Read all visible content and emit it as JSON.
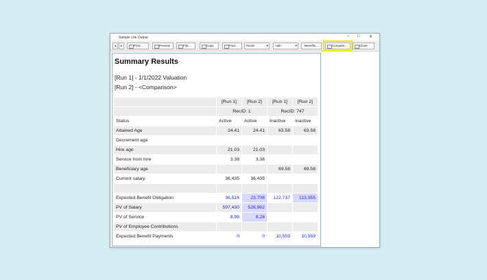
{
  "window": {
    "title": "Sample Life Output"
  },
  "toolbar": {
    "buttons": [
      "Print...",
      "Preview",
      "File...",
      "Copy",
      "Find..."
    ],
    "dropdowns": [
      "RecID",
      "<all>"
    ],
    "actions": [
      "Benefits...",
      "Compare...",
      "Close"
    ]
  },
  "report": {
    "title": "Summary Results",
    "runs": [
      "[Run 1] - 1/1/2022 Valuation",
      "[Run 2] - <Comparison>"
    ],
    "table": {
      "run_headers": [
        "[Run 1]",
        "[Run 2]",
        "[Run 1]",
        "[Run 2]"
      ],
      "groups": [
        "RecID: 1",
        "RecID: 747"
      ],
      "rows": [
        {
          "label": "Status",
          "values": [
            "Active",
            "Active",
            "Inactive",
            "Inactive"
          ]
        },
        {
          "label": "Attained Age",
          "values": [
            "24.41",
            "24.41",
            "63.58",
            "63.58"
          ]
        },
        {
          "label": "Decrement age",
          "values": [
            null,
            null,
            null,
            null
          ]
        },
        {
          "label": "Hire age",
          "values": [
            "21.03",
            "21.03",
            null,
            null
          ]
        },
        {
          "label": "Service from hire",
          "values": [
            "3.38",
            "3.38",
            null,
            null
          ]
        },
        {
          "label": "Beneficiary age",
          "values": [
            null,
            null,
            "69.58",
            "69.58"
          ]
        },
        {
          "label": "Current salary",
          "values": [
            "36,435",
            "36,435",
            null,
            null
          ]
        },
        {
          "label": null,
          "values": [
            null,
            null,
            null,
            null
          ]
        },
        {
          "label": "Expected Benefit Obligation",
          "values": [
            "36,516",
            "23,708",
            "122,737",
            "113,355"
          ]
        },
        {
          "label": "PV of Salary",
          "values": [
            "597,430",
            "526,962",
            null,
            null
          ]
        },
        {
          "label": "PV of Service",
          "values": [
            "8.98",
            "8.28",
            null,
            null
          ]
        },
        {
          "label": "PV of Employee Contributions",
          "values": [
            null,
            null,
            null,
            null
          ]
        },
        {
          "label": "Expected Benefit Payments",
          "values": [
            "0",
            "0",
            "10,559",
            "10,559"
          ]
        }
      ]
    }
  }
}
